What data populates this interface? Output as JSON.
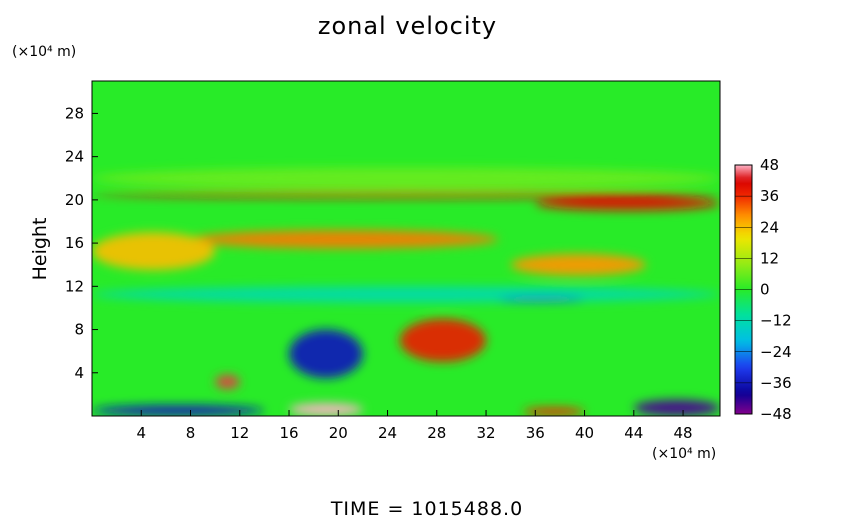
{
  "chart_data": {
    "type": "heatmap",
    "title": "zonal velocity",
    "ylabel": "Height",
    "x_unit": "(×10⁴ m)",
    "y_unit": "(×10⁴ m)",
    "xlim": [
      0,
      51
    ],
    "ylim": [
      0,
      31
    ],
    "x_ticks": [
      4,
      8,
      12,
      16,
      20,
      24,
      28,
      32,
      36,
      40,
      44,
      48
    ],
    "y_ticks": [
      4,
      8,
      12,
      16,
      20,
      24,
      28
    ],
    "colorbar": {
      "ticks": [
        48,
        36,
        24,
        12,
        0,
        -12,
        -24,
        -36,
        -48
      ],
      "range": [
        -48,
        48
      ],
      "tick_labels": [
        "48",
        "36",
        "24",
        "12",
        "0",
        "−12",
        "−24",
        "−36",
        "−48"
      ]
    },
    "features": [
      {
        "x": [
          0,
          51
        ],
        "y": [
          20.2,
          20.7
        ],
        "value": 40
      },
      {
        "x": [
          36,
          51
        ],
        "y": [
          19,
          20.3
        ],
        "value": 40
      },
      {
        "x": [
          8,
          33
        ],
        "y": [
          15.5,
          17.2
        ],
        "value": 30
      },
      {
        "x": [
          0,
          10
        ],
        "y": [
          13.5,
          17
        ],
        "value": 24
      },
      {
        "x": [
          34,
          45
        ],
        "y": [
          13,
          15
        ],
        "value": 28
      },
      {
        "x": [
          0,
          51
        ],
        "y": [
          21,
          23
        ],
        "value": 6
      },
      {
        "x": [
          0,
          51
        ],
        "y": [
          10.5,
          12
        ],
        "value": -12
      },
      {
        "x": [
          33,
          40
        ],
        "y": [
          10.6,
          11
        ],
        "value": -28
      },
      {
        "x": [
          25,
          32
        ],
        "y": [
          5,
          9
        ],
        "value": 38
      },
      {
        "x": [
          16,
          22
        ],
        "y": [
          3.5,
          8
        ],
        "value": -36
      },
      {
        "x": [
          10,
          12
        ],
        "y": [
          2.5,
          3.8
        ],
        "value": 44
      },
      {
        "x": [
          16,
          22
        ],
        "y": [
          0,
          1.2
        ],
        "value": 48
      },
      {
        "x": [
          35,
          40
        ],
        "y": [
          0,
          0.8
        ],
        "value": 36
      },
      {
        "x": [
          0,
          14
        ],
        "y": [
          0,
          1
        ],
        "value": -36
      },
      {
        "x": [
          44,
          51
        ],
        "y": [
          0,
          1.5
        ],
        "value": -44
      }
    ]
  },
  "page": {
    "title": "zonal velocity",
    "ylabel": "Height",
    "y_unit": "(×10⁴ m)",
    "x_unit": "(×10⁴ m)",
    "time_label": "TIME  =  1015488.0"
  }
}
